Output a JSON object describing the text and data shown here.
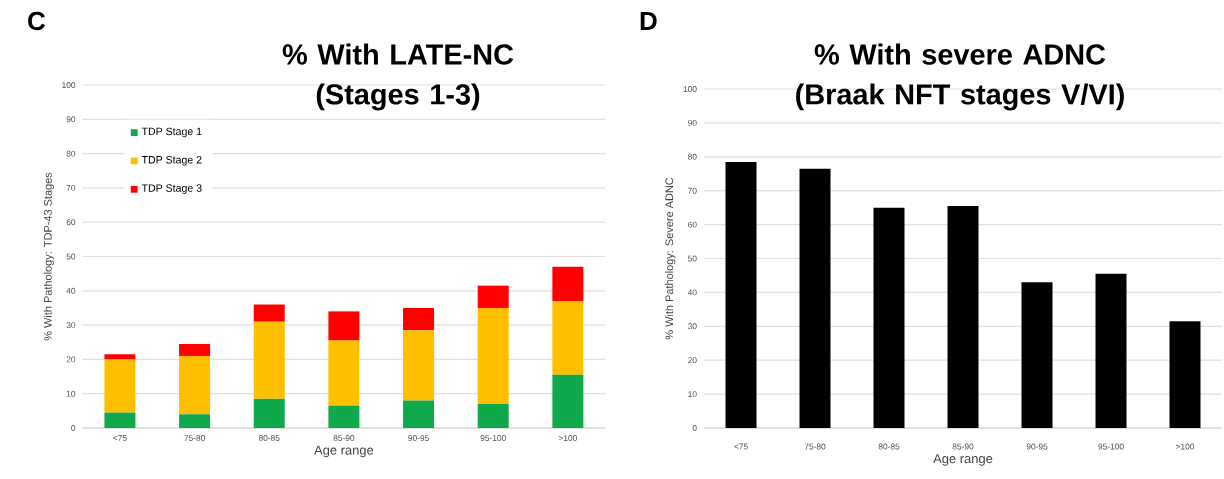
{
  "chart_data": [
    {
      "type": "bar",
      "title": "% With LATE-NC (Stages 1-3)",
      "xlabel": "Age range",
      "ylabel": "% With Pathology: TDP-43 Stages",
      "categories": [
        "<75",
        "75-80",
        "80-85",
        "85-90",
        "90-95",
        "95-100",
        ">100"
      ],
      "stacked": true,
      "series": [
        {
          "name": "TDP Stage 1",
          "color": "#0fa84a",
          "values": [
            4.5,
            4,
            8.5,
            6.5,
            8,
            7,
            15.5
          ]
        },
        {
          "name": "TDP Stage 2",
          "color": "#fdbf00",
          "values": [
            15.5,
            17,
            22.5,
            19,
            20.5,
            28,
            21.5
          ]
        },
        {
          "name": "TDP Stage 3",
          "color": "#fe0000",
          "values": [
            1.5,
            3.5,
            5,
            8.5,
            6.5,
            6.5,
            10
          ]
        }
      ],
      "ylim": [
        0,
        100
      ],
      "yticks": [
        0,
        10,
        20,
        30,
        40,
        50,
        60,
        70,
        80,
        90,
        100
      ],
      "grid": "y",
      "legend": "top left",
      "annotations": [
        "C"
      ]
    },
    {
      "type": "bar",
      "title": "% With severe ADNC (Braak NFT stages V/VI)",
      "xlabel": "Age range",
      "ylabel": "% With Pathology: Severe ADNC",
      "categories": [
        "<75",
        "75-80",
        "80-85",
        "85-90",
        "90-95",
        "95-100",
        ">100"
      ],
      "color": "#000000",
      "values": [
        78.5,
        76.5,
        65,
        65.5,
        43,
        45.5,
        31.5
      ],
      "ylim": [
        0,
        100
      ],
      "yticks": [
        0,
        10,
        20,
        30,
        40,
        50,
        60,
        70,
        80,
        90,
        100
      ],
      "grid": "y",
      "annotations": [
        "D"
      ]
    }
  ]
}
